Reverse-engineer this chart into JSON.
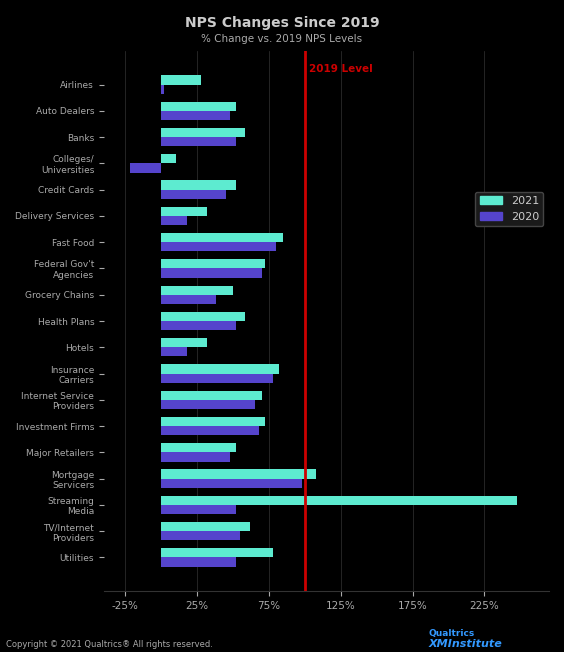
{
  "title": "NPS Changes Since 2019",
  "subtitle": "% Change vs. 2019 NPS Levels",
  "labels": [
    "Airlines",
    "Auto Dealers",
    "Banks",
    "Colleges/\nUniversities",
    "Credit Cards",
    "Delivery Services",
    "Fast Food",
    "Federal Gov't\nAgencies",
    "Grocery Chains",
    "Health Plans",
    "Hotels",
    "Insurance\nCarriers",
    "Internet Service\nProviders",
    "Investment Firms",
    "Major Retailers",
    "Mortgage\nServicers",
    "Streaming\nMedia",
    "TV/Internet\nProviders",
    "Utilities"
  ],
  "values_2021": [
    28,
    52,
    58,
    10,
    52,
    32,
    85,
    72,
    50,
    58,
    32,
    82,
    70,
    72,
    52,
    108,
    248,
    62,
    78
  ],
  "values_2020": [
    2,
    48,
    52,
    -22,
    45,
    18,
    80,
    70,
    38,
    52,
    18,
    78,
    65,
    68,
    48,
    98,
    52,
    55,
    52
  ],
  "color_2021": "#5DEBD0",
  "color_2020": "#5544CC",
  "vline_x": 100,
  "vline_color": "#CC0000",
  "vline_label": "2019 Level",
  "xlim": [
    -40,
    270
  ],
  "xticks": [
    -25,
    25,
    75,
    125,
    175,
    225
  ],
  "xtick_labels": [
    "-25%",
    "25%",
    "75%",
    "125%",
    "175%",
    "225%"
  ],
  "background_color": "#000000",
  "plot_bg_color": "#000000",
  "text_color": "#CCCCCC",
  "label_color": "#AAAAAA",
  "grid_color": "#333333",
  "legend_labels": [
    "2021",
    "2020"
  ],
  "legend_box_color": "#1A1A1A",
  "copyright_text": "Copyright © 2021 Qualtrics® All rights reserved."
}
